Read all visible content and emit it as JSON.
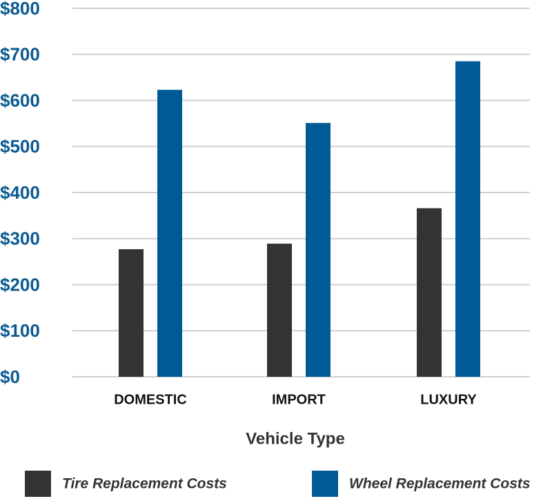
{
  "chart_data": {
    "type": "bar",
    "x_label": "Vehicle Type",
    "categories": [
      "DOMESTIC",
      "IMPORT",
      "LUXURY"
    ],
    "series": [
      {
        "name": "Tire Replacement Costs",
        "color": "#333333",
        "values": [
          277,
          289,
          366
        ]
      },
      {
        "name": "Wheel Replacement Costs",
        "color": "#005a96",
        "values": [
          623,
          551,
          685
        ]
      }
    ],
    "ylim": [
      0,
      800
    ],
    "yticks": [
      {
        "value": 0,
        "label": "$0"
      },
      {
        "value": 100,
        "label": "$100"
      },
      {
        "value": 200,
        "label": "$200"
      },
      {
        "value": 300,
        "label": "$300"
      },
      {
        "value": 400,
        "label": "$400"
      },
      {
        "value": 500,
        "label": "$500"
      },
      {
        "value": 600,
        "label": "$600"
      },
      {
        "value": 700,
        "label": "$700"
      },
      {
        "value": 800,
        "label": "$800"
      }
    ],
    "grid": true
  }
}
